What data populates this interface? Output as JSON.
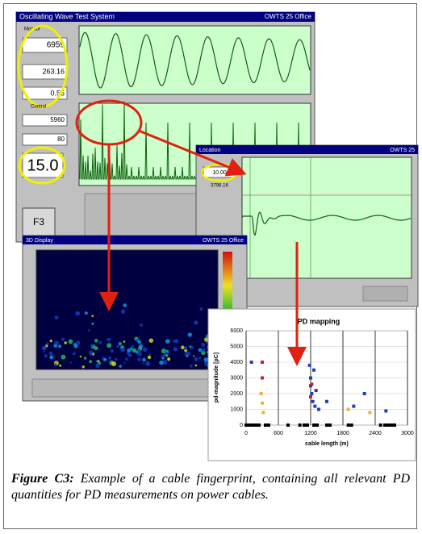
{
  "software": {
    "main_title": "Oscillating Wave Test System",
    "main_edition": "OWTS 25 Office",
    "monitor_label": "Monitor",
    "readouts": [
      "6959",
      "263.16",
      "0.55"
    ],
    "control_label": "Control",
    "control_values": [
      "5960",
      "80"
    ],
    "voltage": "15.0",
    "fkey": "F3",
    "location_title": "Location",
    "location_edition": "OWTS 25",
    "location_readouts": [
      "10.00",
      "3796.16"
    ],
    "display_title": "3D Display",
    "display_edition": "OWTS 25 Office"
  },
  "chart_data": {
    "type": "scatter",
    "title": "PD mapping",
    "x_label": "cable length (m)",
    "y_label": "pd-magnitude [pC]",
    "xlim": [
      0,
      3000
    ],
    "ylim": [
      0,
      6000
    ],
    "xticks": [
      0,
      600,
      1200,
      1800,
      2400,
      3000
    ],
    "yticks": [
      0,
      1000,
      2000,
      3000,
      4000,
      5000,
      6000
    ],
    "grid": true,
    "series": [
      {
        "color": "#000000",
        "x": [
          0,
          60,
          120,
          180,
          240,
          360,
          420,
          780,
          1000,
          1080,
          1140,
          1260,
          1320,
          1500,
          1560,
          1900,
          1960,
          2500,
          2580,
          2640,
          2700,
          2760
        ],
        "values": [
          0,
          0,
          0,
          0,
          0,
          0,
          0,
          0,
          0,
          0,
          0,
          0,
          0,
          0,
          0,
          0,
          0,
          0,
          0,
          0,
          0,
          0
        ]
      },
      {
        "color": "#1f3fbf",
        "x": [
          100,
          1180,
          1200,
          1200,
          1220,
          1240,
          1260,
          1280,
          1300,
          1350,
          1500,
          2000,
          2200,
          2600
        ],
        "values": [
          4000,
          3800,
          3000,
          2500,
          2000,
          1500,
          3500,
          1200,
          2200,
          1000,
          1500,
          1200,
          2000,
          900
        ]
      },
      {
        "color": "#d02020",
        "x": [
          300,
          300,
          1200,
          1220
        ],
        "values": [
          4000,
          3000,
          1800,
          2600
        ]
      },
      {
        "color": "#f0b040",
        "x": [
          280,
          300,
          320,
          1900,
          2300
        ],
        "values": [
          2000,
          1400,
          800,
          1000,
          800
        ]
      }
    ]
  },
  "caption": {
    "label": "Figure C3:",
    "text": "Example of a cable fingerprint, containing all relevant PD quantities for PD measurements on power cables."
  }
}
